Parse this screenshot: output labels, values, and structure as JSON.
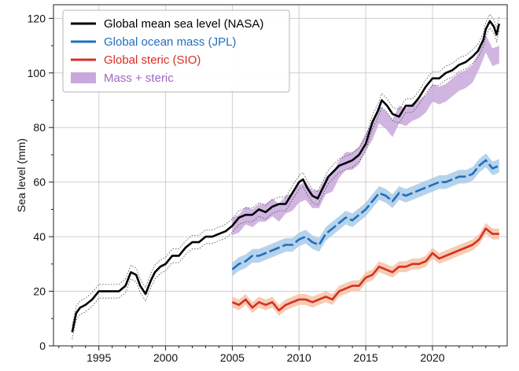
{
  "chart_data": {
    "type": "line",
    "title": "",
    "xlabel": "",
    "ylabel": "Sea level (mm)",
    "xlim": [
      1991.6,
      2025.6
    ],
    "ylim": [
      0,
      125
    ],
    "x_ticks": [
      1995,
      2000,
      2005,
      2010,
      2015,
      2020
    ],
    "y_ticks": [
      0,
      20,
      40,
      60,
      80,
      100,
      120
    ],
    "grid": true,
    "legend_position": "top-left",
    "series": [
      {
        "name": "Global mean sea level (NASA)",
        "color": "#000000",
        "style": "solid",
        "uncertainty_band": "dotted",
        "x": [
          1993.0,
          1993.3,
          1993.6,
          1994.0,
          1994.5,
          1995.0,
          1995.5,
          1996.0,
          1996.5,
          1997.0,
          1997.4,
          1997.8,
          1998.1,
          1998.5,
          1998.9,
          1999.2,
          1999.6,
          2000.0,
          2000.5,
          2001.0,
          2001.5,
          2002.0,
          2002.5,
          2003.0,
          2003.5,
          2004.0,
          2004.5,
          2005.0,
          2005.5,
          2006.0,
          2006.5,
          2007.0,
          2007.5,
          2008.0,
          2008.5,
          2009.0,
          2009.5,
          2010.0,
          2010.3,
          2010.6,
          2011.0,
          2011.4,
          2011.8,
          2012.2,
          2012.6,
          2013.0,
          2013.5,
          2014.0,
          2014.5,
          2015.0,
          2015.5,
          2015.9,
          2016.2,
          2016.6,
          2017.0,
          2017.5,
          2018.0,
          2018.5,
          2019.0,
          2019.5,
          2020.0,
          2020.5,
          2021.0,
          2021.5,
          2022.0,
          2022.5,
          2023.0,
          2023.4,
          2023.8,
          2024.0,
          2024.3,
          2024.6,
          2024.8,
          2025.0
        ],
        "y": [
          5,
          12,
          14,
          15,
          17,
          20,
          20,
          20,
          20,
          22,
          27,
          26,
          22,
          19,
          24,
          27,
          29,
          30,
          33,
          33,
          36,
          38,
          38,
          40,
          40,
          41,
          42,
          44,
          47,
          48,
          48,
          50,
          49,
          51,
          52,
          52,
          56,
          60,
          61,
          58,
          55,
          54,
          58,
          62,
          64,
          66,
          67,
          68,
          70,
          74,
          82,
          86,
          90,
          88,
          85,
          84,
          88,
          88,
          91,
          95,
          98,
          98,
          100,
          101,
          103,
          104,
          106,
          108,
          112,
          116,
          119,
          117,
          114,
          118
        ]
      },
      {
        "name": "Global ocean mass (JPL)",
        "color": "#1f6fbf",
        "style": "solid-dashed",
        "x": [
          2005.0,
          2005.5,
          2006.0,
          2006.5,
          2007.0,
          2007.5,
          2008.0,
          2008.5,
          2009.0,
          2009.5,
          2010.0,
          2010.5,
          2011.0,
          2011.5,
          2012.0,
          2012.5,
          2013.0,
          2013.5,
          2014.0,
          2014.5,
          2015.0,
          2015.5,
          2016.0,
          2016.5,
          2017.0,
          2017.5,
          2018.0,
          2018.5,
          2019.0,
          2019.5,
          2020.0,
          2020.5,
          2021.0,
          2021.5,
          2022.0,
          2022.5,
          2023.0,
          2023.5,
          2024.0,
          2024.5,
          2025.0
        ],
        "y": [
          28,
          30,
          31,
          33,
          33,
          34,
          35,
          36,
          37,
          37,
          39,
          40,
          38,
          37,
          41,
          43,
          45,
          47,
          46,
          48,
          50,
          53,
          56,
          55,
          53,
          56,
          55,
          56,
          57,
          58,
          59,
          60,
          60,
          61,
          62,
          62,
          63,
          66,
          68,
          65,
          66
        ]
      },
      {
        "name": "Global steric (SIO)",
        "color": "#d62f24",
        "style": "solid",
        "x": [
          2005.0,
          2005.5,
          2006.0,
          2006.5,
          2007.0,
          2007.5,
          2008.0,
          2008.5,
          2009.0,
          2009.5,
          2010.0,
          2010.5,
          2011.0,
          2011.5,
          2012.0,
          2012.5,
          2013.0,
          2013.5,
          2014.0,
          2014.5,
          2015.0,
          2015.5,
          2016.0,
          2016.5,
          2017.0,
          2017.5,
          2018.0,
          2018.5,
          2019.0,
          2019.5,
          2020.0,
          2020.5,
          2021.0,
          2021.5,
          2022.0,
          2022.5,
          2023.0,
          2023.5,
          2024.0,
          2024.5,
          2025.0
        ],
        "y": [
          16,
          15,
          17,
          14,
          16,
          15,
          16,
          13,
          15,
          16,
          17,
          17,
          16,
          17,
          18,
          17,
          20,
          21,
          22,
          22,
          25,
          26,
          29,
          28,
          27,
          29,
          29,
          30,
          30,
          31,
          34,
          32,
          33,
          34,
          35,
          36,
          37,
          39,
          43,
          41,
          41
        ]
      },
      {
        "name": "Mass + steric",
        "color": "#a07cc5",
        "style": "band",
        "x": [
          2005.0,
          2005.5,
          2006.0,
          2006.5,
          2007.0,
          2007.5,
          2008.0,
          2008.5,
          2009.0,
          2009.5,
          2010.0,
          2010.5,
          2011.0,
          2011.5,
          2012.0,
          2012.5,
          2013.0,
          2013.5,
          2014.0,
          2014.5,
          2015.0,
          2015.5,
          2016.0,
          2016.5,
          2017.0,
          2017.5,
          2018.0,
          2018.5,
          2019.0,
          2019.5,
          2020.0,
          2020.5,
          2021.0,
          2021.5,
          2022.0,
          2022.5,
          2023.0,
          2023.5,
          2024.0,
          2024.5,
          2025.0
        ],
        "y": [
          44,
          45,
          48,
          47,
          49,
          49,
          51,
          49,
          52,
          53,
          56,
          57,
          54,
          54,
          59,
          60,
          65,
          68,
          68,
          70,
          75,
          79,
          85,
          83,
          80,
          85,
          84,
          86,
          87,
          89,
          93,
          92,
          93,
          95,
          97,
          98,
          100,
          105,
          111,
          106,
          107
        ]
      }
    ]
  }
}
